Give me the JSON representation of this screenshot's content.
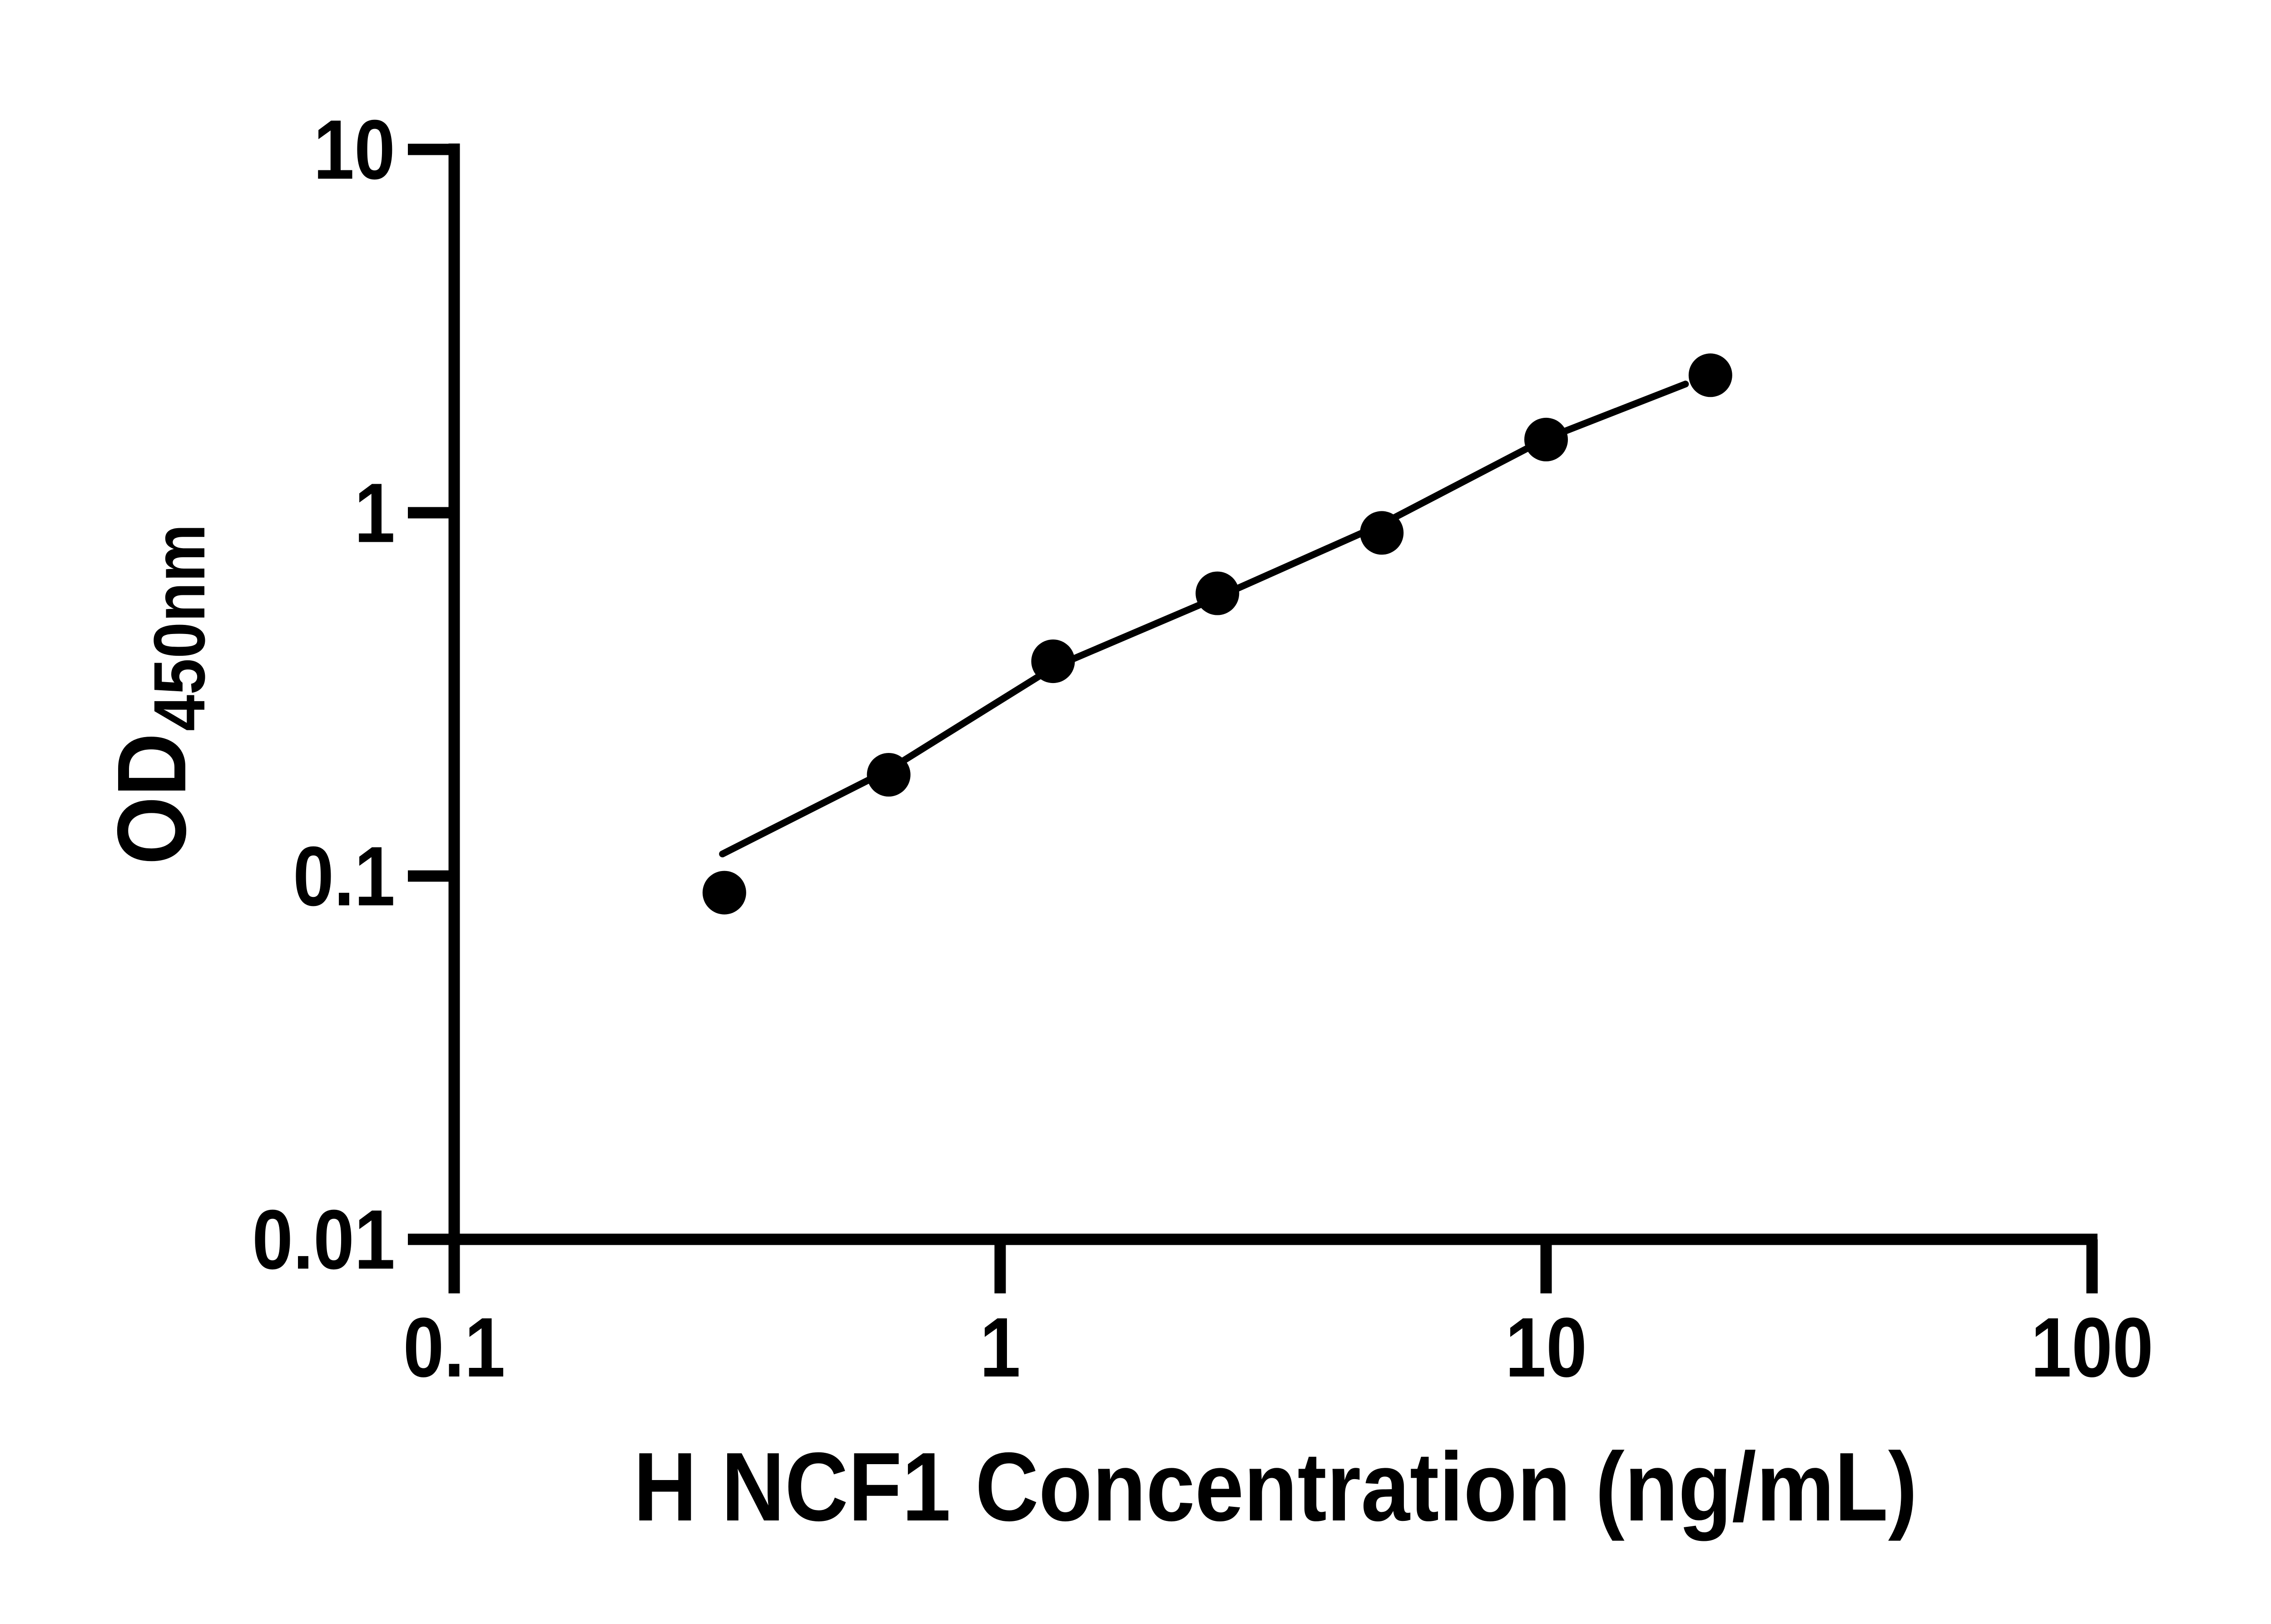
{
  "figure": {
    "background_color": "#ffffff",
    "ink_color": "#000000"
  },
  "chart_data": {
    "type": "scatter",
    "title": "",
    "xlabel": "H NCF1 Concentration (ng/mL)",
    "ylabel_main": "OD",
    "ylabel_subscript": "450nm",
    "x_scale": "log",
    "y_scale": "log",
    "xlim": [
      0.1,
      100
    ],
    "ylim": [
      0.01,
      10
    ],
    "grid": "off",
    "legend": "none",
    "x_tick_labels": [
      "0.1",
      "1",
      "10",
      "100"
    ],
    "x_tick_values": [
      0.1,
      1,
      10,
      100
    ],
    "y_tick_labels": [
      "10",
      "1",
      "0.1",
      "0.01"
    ],
    "y_tick_values": [
      10,
      1,
      0.1,
      0.01
    ],
    "series": [
      {
        "name": "standard-curve-points",
        "marker": "filled-circle",
        "color": "#000000",
        "points": [
          {
            "x": 0.3125,
            "y": 0.09
          },
          {
            "x": 0.625,
            "y": 0.19
          },
          {
            "x": 1.25,
            "y": 0.39
          },
          {
            "x": 2.5,
            "y": 0.6
          },
          {
            "x": 5,
            "y": 0.88
          },
          {
            "x": 10,
            "y": 1.59
          },
          {
            "x": 20,
            "y": 2.39
          }
        ]
      }
    ],
    "fit_curve": [
      {
        "x": 0.31,
        "y": 0.115
      },
      {
        "x": 0.625,
        "y": 0.196
      },
      {
        "x": 1.25,
        "y": 0.375
      },
      {
        "x": 2.5,
        "y": 0.585
      },
      {
        "x": 5,
        "y": 0.93
      },
      {
        "x": 10,
        "y": 1.6
      },
      {
        "x": 18,
        "y": 2.26
      }
    ]
  }
}
